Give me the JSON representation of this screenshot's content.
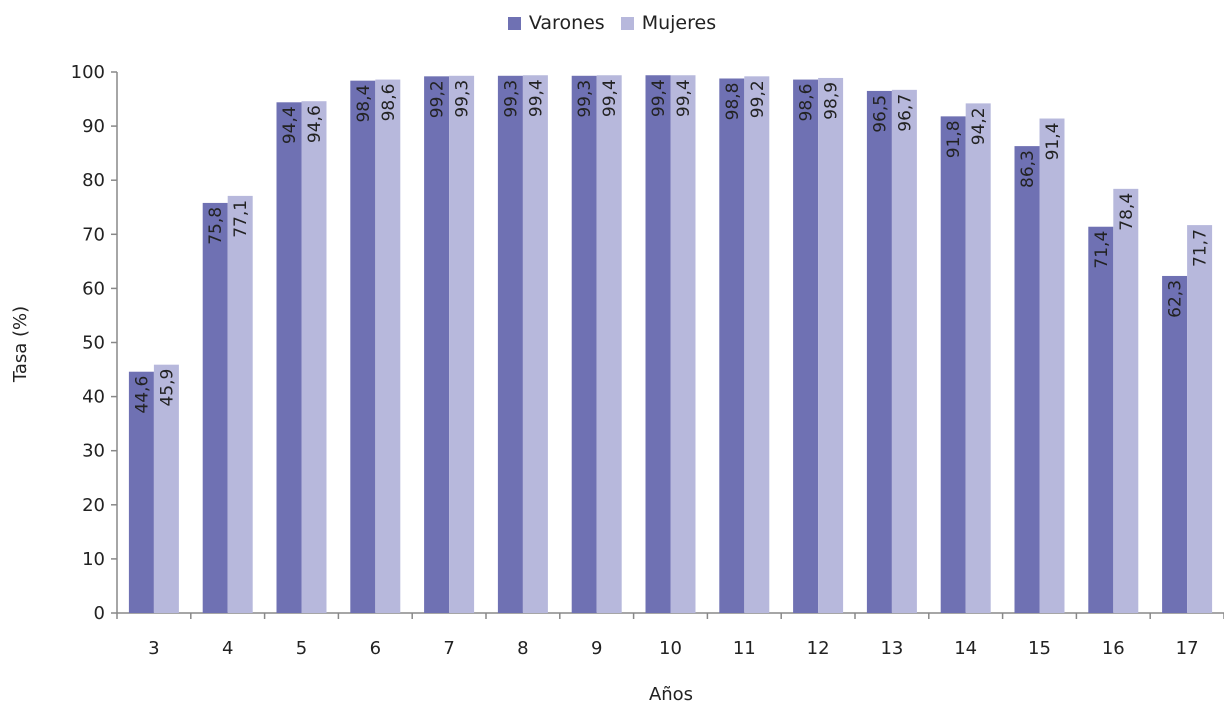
{
  "chart_data": {
    "type": "bar",
    "xlabel": "Años",
    "ylabel": "Tasa (%)",
    "ylim": [
      0,
      100
    ],
    "yticks": [
      0,
      10,
      20,
      30,
      40,
      50,
      60,
      70,
      80,
      90,
      100
    ],
    "categories": [
      "3",
      "4",
      "5",
      "6",
      "7",
      "8",
      "9",
      "10",
      "11",
      "12",
      "13",
      "14",
      "15",
      "16",
      "17"
    ],
    "series": [
      {
        "name": "Varones",
        "color": "#6f71b3",
        "values": [
          44.6,
          75.8,
          94.4,
          98.4,
          99.2,
          99.3,
          99.3,
          99.4,
          98.8,
          98.6,
          96.5,
          91.8,
          86.3,
          71.4,
          62.3
        ],
        "labels": [
          "44,6",
          "75,8",
          "94,4",
          "98,4",
          "99,2",
          "99,3",
          "99,3",
          "99,4",
          "98,8",
          "98,6",
          "96,5",
          "91,8",
          "86,3",
          "71,4",
          "62,3"
        ]
      },
      {
        "name": "Mujeres",
        "color": "#b7b8dc",
        "values": [
          45.9,
          77.1,
          94.6,
          98.6,
          99.3,
          99.4,
          99.4,
          99.4,
          99.2,
          98.9,
          96.7,
          94.2,
          91.4,
          78.4,
          71.7
        ],
        "labels": [
          "45,9",
          "77,1",
          "94,6",
          "98,6",
          "99,3",
          "99,4",
          "99,4",
          "99,4",
          "99,2",
          "98,9",
          "96,7",
          "94,2",
          "91,4",
          "78,4",
          "71,7"
        ]
      }
    ],
    "legend_position": "top-center",
    "grid": false
  }
}
